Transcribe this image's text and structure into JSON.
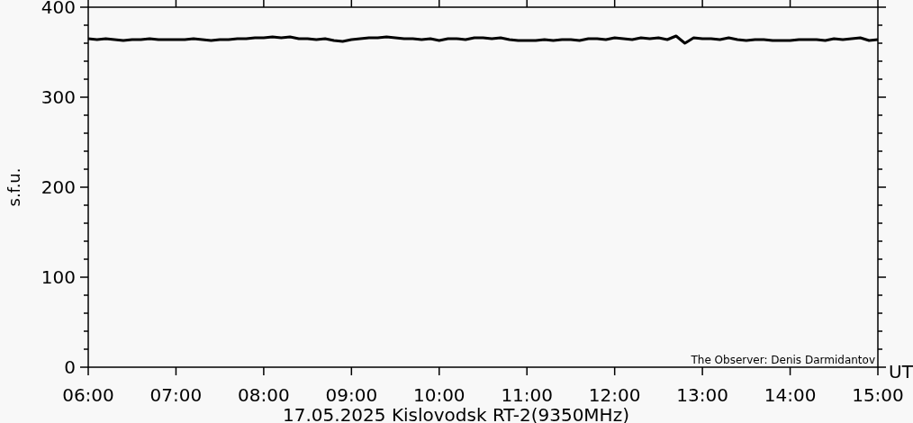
{
  "chart_data": {
    "type": "line",
    "title": "17.05.2025 Kislovodsk RT-2(9350MHz)",
    "xlabel": "UT",
    "ylabel": "s.f.u.",
    "annotations": [
      "The Observer: Denis Darmidantov"
    ],
    "x": [
      6.0,
      6.1,
      6.2,
      6.3,
      6.4,
      6.5,
      6.6,
      6.7,
      6.8,
      6.9,
      7.0,
      7.1,
      7.2,
      7.3,
      7.4,
      7.5,
      7.6,
      7.7,
      7.8,
      7.9,
      8.0,
      8.1,
      8.2,
      8.3,
      8.4,
      8.5,
      8.6,
      8.7,
      8.8,
      8.9,
      9.0,
      9.1,
      9.2,
      9.3,
      9.4,
      9.5,
      9.6,
      9.7,
      9.8,
      9.9,
      10.0,
      10.1,
      10.2,
      10.3,
      10.4,
      10.5,
      10.6,
      10.7,
      10.8,
      10.9,
      11.0,
      11.1,
      11.2,
      11.3,
      11.4,
      11.5,
      11.6,
      11.7,
      11.8,
      11.9,
      12.0,
      12.1,
      12.2,
      12.3,
      12.4,
      12.5,
      12.6,
      12.7,
      12.8,
      12.9,
      13.0,
      13.1,
      13.2,
      13.3,
      13.4,
      13.5,
      13.6,
      13.7,
      13.8,
      13.9,
      14.0,
      14.1,
      14.2,
      14.3,
      14.4,
      14.5,
      14.6,
      14.7,
      14.8,
      14.9,
      15.0
    ],
    "series": [
      {
        "color": "#000000",
        "values": [
          365,
          364,
          365,
          364,
          363,
          364,
          364,
          365,
          364,
          364,
          364,
          364,
          365,
          364,
          363,
          364,
          364,
          365,
          365,
          366,
          366,
          367,
          366,
          367,
          365,
          365,
          364,
          365,
          363,
          362,
          364,
          365,
          366,
          366,
          367,
          366,
          365,
          365,
          364,
          365,
          363,
          365,
          365,
          364,
          366,
          366,
          365,
          366,
          364,
          363,
          363,
          363,
          364,
          363,
          364,
          364,
          363,
          365,
          365,
          364,
          366,
          365,
          364,
          366,
          365,
          366,
          364,
          368,
          360,
          366,
          365,
          365,
          364,
          366,
          364,
          363,
          364,
          364,
          363,
          363,
          363,
          364,
          364,
          364,
          363,
          365,
          364,
          365,
          366,
          363,
          364
        ]
      }
    ],
    "xlim": [
      6,
      15
    ],
    "ylim": [
      0,
      400
    ],
    "xticks": [
      {
        "value": 6,
        "label": "06:00"
      },
      {
        "value": 7,
        "label": "07:00"
      },
      {
        "value": 8,
        "label": "08:00"
      },
      {
        "value": 9,
        "label": "09:00"
      },
      {
        "value": 10,
        "label": "10:00"
      },
      {
        "value": 11,
        "label": "11:00"
      },
      {
        "value": 12,
        "label": "12:00"
      },
      {
        "value": 13,
        "label": "13:00"
      },
      {
        "value": 14,
        "label": "14:00"
      },
      {
        "value": 15,
        "label": "15:00"
      }
    ],
    "yticks": [
      0,
      {
        "value": 20,
        "label": null
      },
      {
        "value": 40,
        "label": null
      },
      {
        "value": 60,
        "label": null
      },
      {
        "value": 80,
        "label": null
      },
      100,
      {
        "value": 120,
        "label": null
      },
      {
        "value": 140,
        "label": null
      },
      {
        "value": 160,
        "label": null
      },
      {
        "value": 180,
        "label": null
      },
      200,
      {
        "value": 220,
        "label": null
      },
      {
        "value": 240,
        "label": null
      },
      {
        "value": 260,
        "label": null
      },
      {
        "value": 280,
        "label": null
      },
      300,
      {
        "value": 320,
        "label": null
      },
      {
        "value": 340,
        "label": null
      },
      {
        "value": 360,
        "label": null
      },
      {
        "value": 380,
        "label": null
      },
      400
    ],
    "grid": false,
    "line_style": "solid"
  }
}
